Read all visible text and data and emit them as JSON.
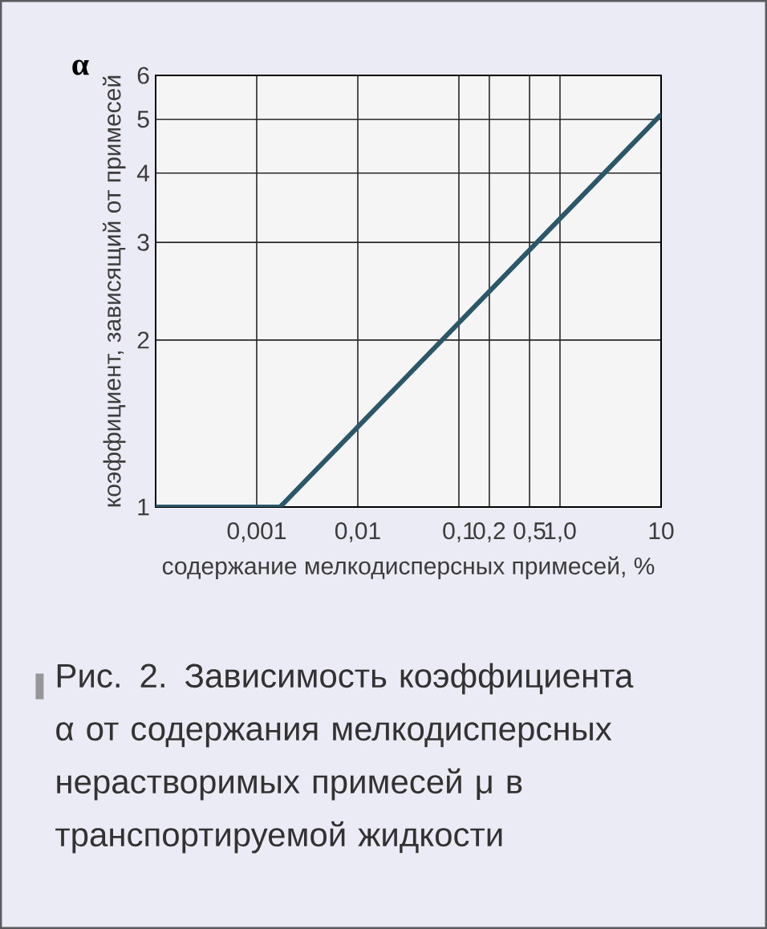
{
  "chart_data": {
    "type": "line",
    "xlabel": "содержание мелкодисперсных примесей, %",
    "ylabel": "коэффициент, зависящий от примесей",
    "annotations": [
      "α",
      "Рис. 2. Зависимость коэффициента α от содержания мелкодисперсных нерастворимых примесей μ в транспортируемой жидкости"
    ],
    "log": "xy",
    "grid": true,
    "x": [
      0.0001,
      0.0017,
      10
    ],
    "series": [
      {
        "color": "#2b5868",
        "values": [
          1,
          1,
          5.1
        ]
      }
    ],
    "xlim": [
      0.0001,
      10
    ],
    "ylim": [
      1,
      6
    ],
    "xticks": [
      {
        "value": 0.001,
        "label": "0,001"
      },
      {
        "value": 0.01,
        "label": "0,01"
      },
      {
        "value": 0.1,
        "label": "0,1"
      },
      {
        "value": 0.2,
        "label": "0,2"
      },
      {
        "value": 0.5,
        "label": "0,5"
      },
      {
        "value": 1,
        "label": "1,0"
      },
      10
    ],
    "yticks": [
      1,
      2,
      3,
      4,
      5,
      6
    ]
  }
}
